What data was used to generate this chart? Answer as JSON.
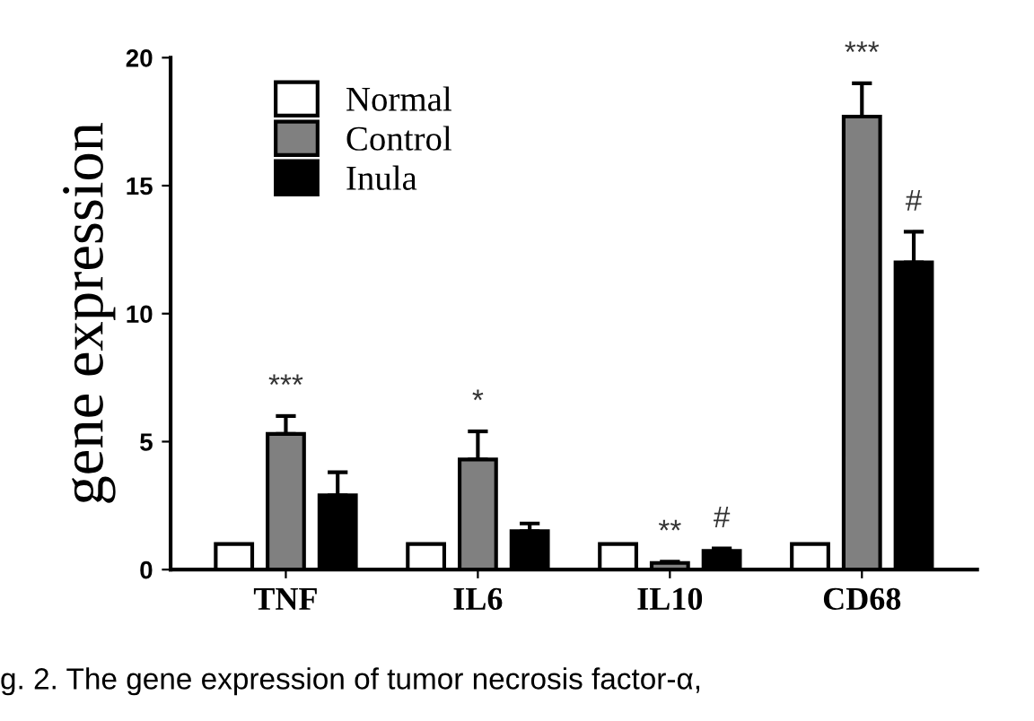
{
  "chart_data": {
    "type": "bar",
    "ylabel": "gene expression",
    "categories": [
      "TNF",
      "IL6",
      "IL10",
      "CD68"
    ],
    "series": [
      {
        "name": "Normal",
        "color": "#ffffff",
        "values": [
          1,
          1,
          1,
          1
        ]
      },
      {
        "name": "Control",
        "color": "#808080",
        "values": [
          5.3,
          4.3,
          0.26,
          17.7
        ],
        "errors": [
          0.7,
          1.1,
          0.05,
          1.3
        ],
        "value_labels": [
          "***",
          "*",
          "**",
          "***"
        ]
      },
      {
        "name": "Inula",
        "color": "#000000",
        "values": [
          2.9,
          1.5,
          0.73,
          12.0
        ],
        "errors": [
          0.9,
          0.3,
          0.1,
          1.2
        ],
        "value_labels": [
          null,
          null,
          "#",
          "#"
        ]
      }
    ],
    "ylim": [
      0,
      20
    ],
    "yticks": [
      0,
      5,
      10,
      15,
      20
    ],
    "grid": false,
    "legend": "top left",
    "annotations": [
      "g. 2. The gene expression of tumor necrosis factor-α,"
    ]
  }
}
